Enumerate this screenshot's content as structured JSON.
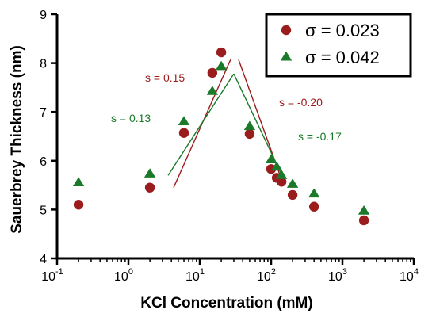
{
  "chart_data": {
    "type": "scatter",
    "title": "",
    "xlabel": "KCl Concentration (mM)",
    "ylabel": "Sauerbrey Thickness (nm)",
    "xscale": "log",
    "xlim": [
      0.1,
      10000
    ],
    "ylim": [
      4,
      9
    ],
    "x_ticks": [
      {
        "value": 0.1,
        "base": "10",
        "exp": "-1"
      },
      {
        "value": 1,
        "base": "10",
        "exp": "0"
      },
      {
        "value": 10,
        "base": "10",
        "exp": "1"
      },
      {
        "value": 100,
        "base": "10",
        "exp": "2"
      },
      {
        "value": 1000,
        "base": "10",
        "exp": "3"
      },
      {
        "value": 10000,
        "base": "10",
        "exp": "4"
      }
    ],
    "y_ticks": [
      4,
      5,
      6,
      7,
      8,
      9
    ],
    "grid": false,
    "legend_position": "top-right",
    "series": [
      {
        "name": "σ = 0.023",
        "marker": "circle",
        "color": "#9b1c1c",
        "points": [
          {
            "x": 0.2,
            "y": 5.1
          },
          {
            "x": 2,
            "y": 5.45
          },
          {
            "x": 6,
            "y": 6.57
          },
          {
            "x": 15,
            "y": 7.8
          },
          {
            "x": 20,
            "y": 8.22
          },
          {
            "x": 50,
            "y": 6.55
          },
          {
            "x": 100,
            "y": 5.83
          },
          {
            "x": 120,
            "y": 5.65
          },
          {
            "x": 140,
            "y": 5.57
          },
          {
            "x": 200,
            "y": 5.3
          },
          {
            "x": 400,
            "y": 5.06
          },
          {
            "x": 2000,
            "y": 4.78
          }
        ],
        "fits": [
          {
            "label": "s = 0.15",
            "from": {
              "x": 4.3,
              "y": 5.45
            },
            "to": {
              "x": 27,
              "y": 8.07
            }
          },
          {
            "label": "s = -0.20",
            "from": {
              "x": 35,
              "y": 8.07
            },
            "to": {
              "x": 140,
              "y": 5.62
            }
          }
        ]
      },
      {
        "name": "σ = 0.042",
        "marker": "triangle",
        "color": "#1a7a2a",
        "points": [
          {
            "x": 0.2,
            "y": 5.55
          },
          {
            "x": 2,
            "y": 5.73
          },
          {
            "x": 6,
            "y": 6.8
          },
          {
            "x": 15,
            "y": 7.42
          },
          {
            "x": 20,
            "y": 7.93
          },
          {
            "x": 50,
            "y": 6.7
          },
          {
            "x": 100,
            "y": 6.02
          },
          {
            "x": 120,
            "y": 5.87
          },
          {
            "x": 140,
            "y": 5.7
          },
          {
            "x": 200,
            "y": 5.52
          },
          {
            "x": 400,
            "y": 5.32
          },
          {
            "x": 2000,
            "y": 4.97
          }
        ],
        "fits": [
          {
            "label": "s = 0.13",
            "from": {
              "x": 3.6,
              "y": 5.7
            },
            "to": {
              "x": 30,
              "y": 7.78
            }
          },
          {
            "label": "s = -0.17",
            "from": {
              "x": 30,
              "y": 7.78
            },
            "to": {
              "x": 140,
              "y": 5.72
            }
          }
        ]
      }
    ]
  }
}
